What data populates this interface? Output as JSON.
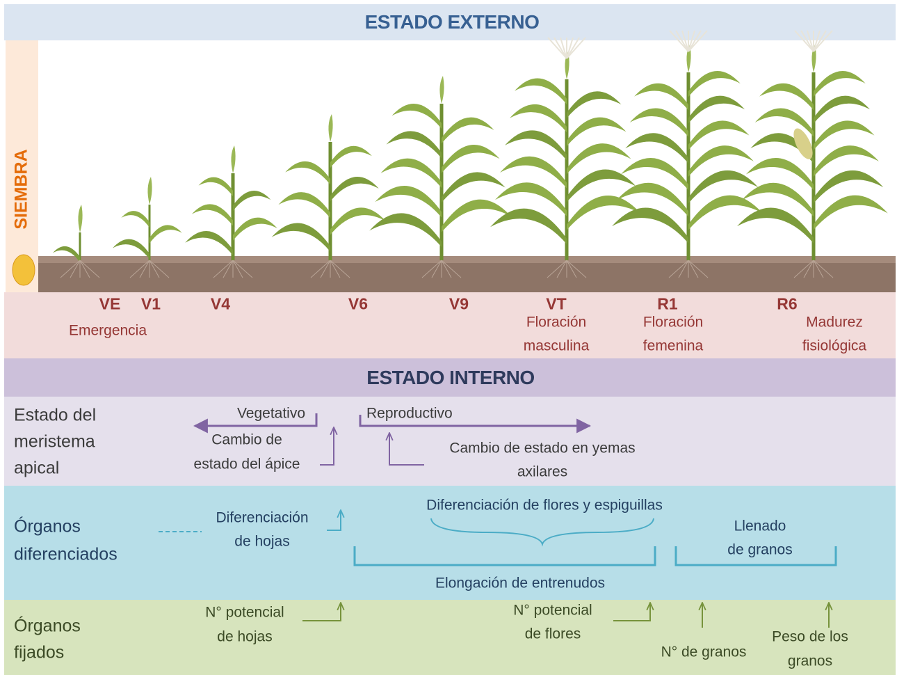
{
  "header": {
    "external": "ESTADO EXTERNO",
    "sowing": "SIEMBRA",
    "internal": "ESTADO INTERNO"
  },
  "stages": [
    "VE",
    "V1",
    "V4",
    "V6",
    "V9",
    "VT",
    "R1",
    "R6"
  ],
  "stage_descriptions": [
    [
      "Emergencia"
    ],
    [
      "Floración",
      "masculina"
    ],
    [
      "Floración",
      "femenina"
    ],
    [
      "Madurez",
      "fisiológica"
    ]
  ],
  "meristem": {
    "label": [
      "Estado del",
      "meristema",
      "apical"
    ],
    "vegetative": "Vegetativo",
    "reproductive": "Reproductivo",
    "apex_change": [
      "Cambio de",
      "estado del ápice"
    ],
    "axillary_change": [
      "Cambio de estado en yemas",
      "axilares"
    ]
  },
  "organs_differentiated": {
    "label": [
      "Órganos",
      "diferenciados"
    ],
    "leaf_differentiation": [
      "Diferenciación",
      "de hojas"
    ],
    "flower_differentiation": "Diferenciación de flores y espiguillas",
    "grain_filling": [
      "Llenado",
      "de granos"
    ],
    "internode_elongation": "Elongación de entrenudos"
  },
  "organs_fixed": {
    "label": [
      "Órganos",
      "fijados"
    ],
    "leaf_potential": [
      "N° potencial",
      "de hojas"
    ],
    "flower_potential": [
      "N° potencial",
      "de flores"
    ],
    "grain_number": "N° de granos",
    "grain_weight": [
      "Peso de los",
      "granos"
    ]
  }
}
